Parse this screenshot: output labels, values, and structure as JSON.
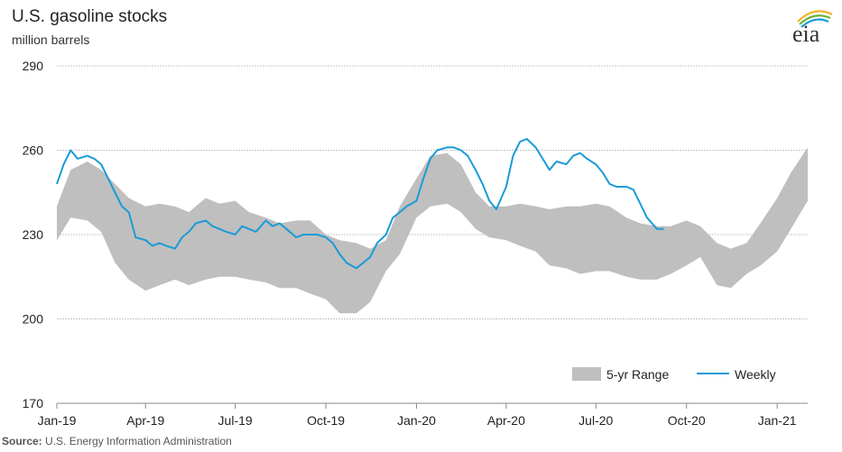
{
  "header": {
    "title": "U.S. gasoline stocks",
    "subtitle": "million barrels",
    "logo_text": "eia"
  },
  "source": {
    "label": "Source:",
    "text": "U.S. Energy Information Administration"
  },
  "colors": {
    "range_fill": "#bfbfbf",
    "weekly_line": "#1a9bd7",
    "grid": "#c8c8c8",
    "axis": "#888888"
  },
  "chart_data": {
    "type": "area",
    "title": "U.S. gasoline stocks",
    "ylabel": "million barrels",
    "xlabel": "",
    "ylim": [
      170,
      290
    ],
    "yticks": [
      170,
      200,
      230,
      260,
      290
    ],
    "xlim": [
      "2019-01-01",
      "2021-02-01"
    ],
    "xticks": [
      {
        "date": "2019-01-01",
        "label": "Jan-19"
      },
      {
        "date": "2019-04-01",
        "label": "Apr-19"
      },
      {
        "date": "2019-07-01",
        "label": "Jul-19"
      },
      {
        "date": "2019-10-01",
        "label": "Oct-19"
      },
      {
        "date": "2020-01-01",
        "label": "Jan-20"
      },
      {
        "date": "2020-04-01",
        "label": "Apr-20"
      },
      {
        "date": "2020-07-01",
        "label": "Jul-20"
      },
      {
        "date": "2020-10-01",
        "label": "Oct-20"
      },
      {
        "date": "2021-01-01",
        "label": "Jan-21"
      }
    ],
    "grid": true,
    "legend_position": "bottom-right",
    "series": [
      {
        "name": "5-yr Range",
        "kind": "band",
        "x": [
          "2019-01-01",
          "2019-01-15",
          "2019-02-01",
          "2019-02-15",
          "2019-03-01",
          "2019-03-15",
          "2019-04-01",
          "2019-04-15",
          "2019-05-01",
          "2019-05-15",
          "2019-06-01",
          "2019-06-15",
          "2019-07-01",
          "2019-07-15",
          "2019-08-01",
          "2019-08-15",
          "2019-09-01",
          "2019-09-15",
          "2019-10-01",
          "2019-10-15",
          "2019-11-01",
          "2019-11-15",
          "2019-12-01",
          "2019-12-15",
          "2020-01-01",
          "2020-01-15",
          "2020-02-01",
          "2020-02-15",
          "2020-03-01",
          "2020-03-15",
          "2020-04-01",
          "2020-04-15",
          "2020-05-01",
          "2020-05-15",
          "2020-06-01",
          "2020-06-15",
          "2020-07-01",
          "2020-07-15",
          "2020-08-01",
          "2020-08-15",
          "2020-09-01",
          "2020-09-15",
          "2020-10-01",
          "2020-10-15",
          "2020-11-01",
          "2020-11-15",
          "2020-12-01",
          "2020-12-15",
          "2021-01-01",
          "2021-01-15",
          "2021-02-01"
        ],
        "low": [
          228,
          236,
          235,
          231,
          220,
          214,
          210,
          212,
          214,
          212,
          214,
          215,
          215,
          214,
          213,
          211,
          211,
          209,
          207,
          202,
          202,
          206,
          217,
          223,
          236,
          240,
          241,
          238,
          232,
          229,
          228,
          226,
          224,
          219,
          218,
          216,
          217,
          217,
          215,
          214,
          214,
          216,
          219,
          222,
          212,
          211,
          216,
          219,
          224,
          232,
          242
        ],
        "high": [
          240,
          253,
          256,
          253,
          248,
          243,
          240,
          241,
          240,
          238,
          243,
          241,
          242,
          238,
          236,
          234,
          235,
          235,
          230,
          228,
          227,
          225,
          228,
          240,
          250,
          258,
          259,
          255,
          245,
          240,
          240,
          241,
          240,
          239,
          240,
          240,
          241,
          240,
          236,
          234,
          233,
          233,
          235,
          233,
          227,
          225,
          227,
          234,
          243,
          252,
          261
        ]
      },
      {
        "name": "Weekly",
        "kind": "line",
        "x": [
          "2019-01-01",
          "2019-01-08",
          "2019-01-15",
          "2019-01-22",
          "2019-02-01",
          "2019-02-08",
          "2019-02-15",
          "2019-02-22",
          "2019-03-01",
          "2019-03-08",
          "2019-03-15",
          "2019-03-22",
          "2019-04-01",
          "2019-04-08",
          "2019-04-15",
          "2019-04-22",
          "2019-05-01",
          "2019-05-08",
          "2019-05-15",
          "2019-05-22",
          "2019-06-01",
          "2019-06-08",
          "2019-06-15",
          "2019-06-22",
          "2019-07-01",
          "2019-07-08",
          "2019-07-15",
          "2019-07-22",
          "2019-08-01",
          "2019-08-08",
          "2019-08-15",
          "2019-08-22",
          "2019-09-01",
          "2019-09-08",
          "2019-09-15",
          "2019-09-22",
          "2019-10-01",
          "2019-10-08",
          "2019-10-15",
          "2019-10-22",
          "2019-11-01",
          "2019-11-08",
          "2019-11-15",
          "2019-11-22",
          "2019-12-01",
          "2019-12-08",
          "2019-12-15",
          "2019-12-22",
          "2020-01-01",
          "2020-01-08",
          "2020-01-15",
          "2020-01-22",
          "2020-02-01",
          "2020-02-08",
          "2020-02-15",
          "2020-02-22",
          "2020-03-01",
          "2020-03-08",
          "2020-03-15",
          "2020-03-22",
          "2020-04-01",
          "2020-04-08",
          "2020-04-15",
          "2020-04-22",
          "2020-05-01",
          "2020-05-08",
          "2020-05-15",
          "2020-05-22",
          "2020-06-01",
          "2020-06-08",
          "2020-06-15",
          "2020-06-22",
          "2020-07-01",
          "2020-07-08",
          "2020-07-15",
          "2020-07-22",
          "2020-08-01",
          "2020-08-08",
          "2020-08-15",
          "2020-08-22",
          "2020-09-01",
          "2020-09-08"
        ],
        "y": [
          248,
          255,
          260,
          257,
          258,
          257,
          255,
          250,
          245,
          240,
          238,
          229,
          228,
          226,
          227,
          226,
          225,
          229,
          231,
          234,
          235,
          233,
          232,
          231,
          230,
          233,
          232,
          231,
          235,
          233,
          234,
          232,
          229,
          230,
          230,
          230,
          229,
          227,
          223,
          220,
          218,
          220,
          222,
          227,
          230,
          236,
          238,
          240,
          242,
          250,
          257,
          260,
          261,
          261,
          260,
          258,
          253,
          248,
          242,
          239,
          247,
          258,
          263,
          264,
          261,
          257,
          253,
          256,
          255,
          258,
          259,
          257,
          255,
          252,
          248,
          247,
          247,
          246,
          241,
          236,
          232,
          232
        ]
      }
    ]
  },
  "legend": {
    "range_label": "5-yr Range",
    "weekly_label": "Weekly"
  }
}
